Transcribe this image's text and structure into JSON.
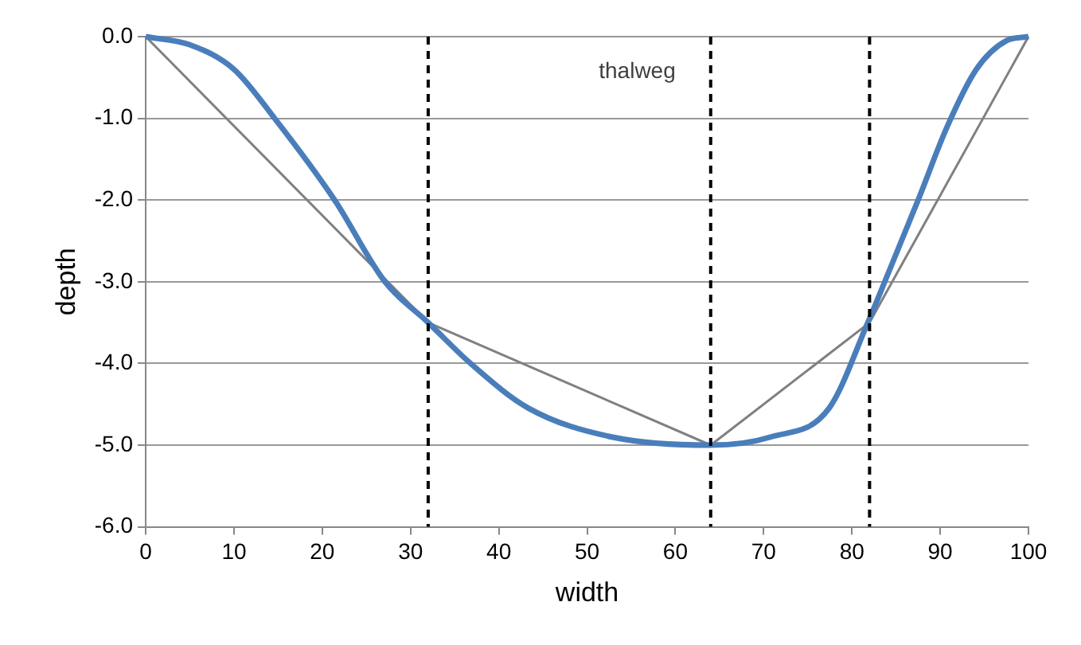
{
  "chart_data": {
    "type": "line",
    "xlabel": "width",
    "ylabel": "depth",
    "series": [
      {
        "type": "line",
        "color": "#4a7ebb",
        "x": [
          0,
          5,
          10,
          14.6,
          21.4,
          27.1,
          32,
          36.8,
          43.4,
          52.8,
          64,
          70.8,
          77.4,
          81.8,
          84.1,
          87.5,
          90.8,
          94.1,
          97.5,
          100
        ],
        "values": [
          0,
          -0.1,
          -0.4,
          -1.0,
          -2.0,
          -3.0,
          -3.5,
          -4.0,
          -4.55,
          -4.9,
          -5.0,
          -4.9,
          -4.55,
          -3.5,
          -2.9,
          -2.0,
          -1.1,
          -0.4,
          -0.05,
          0
        ]
      },
      {
        "type": "line",
        "color": "#808080",
        "x": [
          0,
          32,
          64,
          82,
          100
        ],
        "values": [
          0,
          -3.5,
          -5.0,
          -3.5,
          0
        ]
      }
    ],
    "xlim": [
      0,
      100
    ],
    "xticks": [
      0,
      10,
      20,
      30,
      40,
      50,
      60,
      70,
      80,
      90,
      100
    ],
    "ylim": [
      -6,
      0
    ],
    "yticks": [
      {
        "value": -6,
        "label": "-6.0"
      },
      {
        "value": -5,
        "label": "-5.0"
      },
      {
        "value": -4,
        "label": "-4.0"
      },
      {
        "value": -3,
        "label": "-3.0"
      },
      {
        "value": -2,
        "label": "-2.0"
      },
      {
        "value": -1,
        "label": "-1.0"
      },
      {
        "value": 0,
        "label": "0.0"
      }
    ],
    "ref_lines": [
      {
        "axis": "x",
        "value": 32,
        "color": "#000000",
        "line_style": "dashed"
      },
      {
        "axis": "x",
        "value": 64,
        "label": "thalweg",
        "color": "#000000",
        "line_style": "dashed"
      },
      {
        "axis": "x",
        "value": 82,
        "color": "#000000",
        "line_style": "dashed"
      }
    ],
    "grid": "y",
    "legend": false,
    "marker": "none",
    "line_style": "solid"
  }
}
